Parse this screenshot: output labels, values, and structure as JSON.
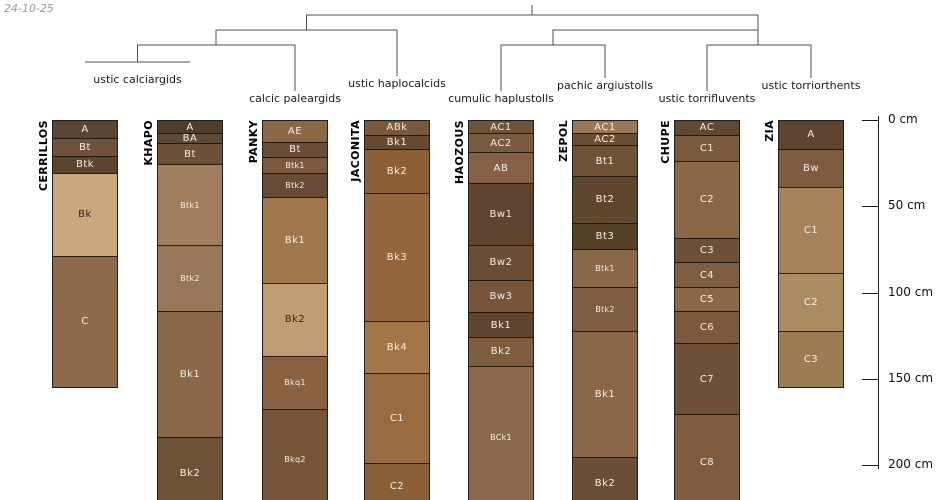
{
  "meta": {
    "date_stamp": "24-10-25"
  },
  "dendrogram": {
    "labels": [
      "ustic calciargids",
      "calcic paleargids",
      "ustic haplocalcids",
      "cumulic haplustolls",
      "pachic argiustolls",
      "ustic torrifluvents",
      "ustic torriorthents"
    ]
  },
  "depth_axis": {
    "unit": "cm",
    "ticks": [
      {
        "cm": 0,
        "label": "0 cm"
      },
      {
        "cm": 50,
        "label": "50 cm"
      },
      {
        "cm": 100,
        "label": "100 cm"
      },
      {
        "cm": 150,
        "label": "150 cm"
      },
      {
        "cm": 200,
        "label": "200 cm"
      }
    ]
  },
  "profiles": [
    {
      "name": "CERRILLOS",
      "group": "ustic calciargids",
      "horizons": [
        {
          "label": "A",
          "top_cm": 0,
          "bottom_cm": 10,
          "color": "#5a4733"
        },
        {
          "label": "Bt",
          "top_cm": 10,
          "bottom_cm": 20,
          "color": "#6e523b"
        },
        {
          "label": "Btk",
          "top_cm": 20,
          "bottom_cm": 30,
          "color": "#59452f"
        },
        {
          "label": "Bk",
          "top_cm": 30,
          "bottom_cm": 78,
          "color": "#c9a67c"
        },
        {
          "label": "C",
          "top_cm": 78,
          "bottom_cm": 154,
          "color": "#8d6a4b"
        }
      ]
    },
    {
      "name": "KHAPO",
      "group": "ustic calciargids",
      "horizons": [
        {
          "label": "A",
          "top_cm": 0,
          "bottom_cm": 7,
          "color": "#4e3d2b"
        },
        {
          "label": "BA",
          "top_cm": 7,
          "bottom_cm": 13,
          "color": "#5d4936"
        },
        {
          "label": "Bt",
          "top_cm": 13,
          "bottom_cm": 25,
          "color": "#6d5038"
        },
        {
          "label": "Btk1",
          "top_cm": 25,
          "bottom_cm": 72,
          "color": "#a07e5e"
        },
        {
          "label": "Btk2",
          "top_cm": 72,
          "bottom_cm": 110,
          "color": "#97775a"
        },
        {
          "label": "Bk1",
          "top_cm": 110,
          "bottom_cm": 183,
          "color": "#8a6749"
        },
        {
          "label": "Bk2",
          "top_cm": 183,
          "bottom_cm": 225,
          "color": "#6e5237"
        }
      ]
    },
    {
      "name": "PANKY",
      "group": "calcic paleargids",
      "horizons": [
        {
          "label": "AE",
          "top_cm": 0,
          "bottom_cm": 12,
          "color": "#8c6746"
        },
        {
          "label": "Bt",
          "top_cm": 12,
          "bottom_cm": 21,
          "color": "#6b4d36"
        },
        {
          "label": "Btk1",
          "top_cm": 21,
          "bottom_cm": 30,
          "color": "#7c5a40"
        },
        {
          "label": "Btk2",
          "top_cm": 30,
          "bottom_cm": 44,
          "color": "#684b36"
        },
        {
          "label": "Bk1",
          "top_cm": 44,
          "bottom_cm": 94,
          "color": "#a0774c"
        },
        {
          "label": "Bk2",
          "top_cm": 94,
          "bottom_cm": 136,
          "color": "#c29d73"
        },
        {
          "label": "Bkq1",
          "top_cm": 136,
          "bottom_cm": 167,
          "color": "#8a6242"
        },
        {
          "label": "Bkq2",
          "top_cm": 167,
          "bottom_cm": 225,
          "color": "#755639"
        }
      ]
    },
    {
      "name": "JACONITA",
      "group": "ustic haplocalcids",
      "horizons": [
        {
          "label": "ABk",
          "top_cm": 0,
          "bottom_cm": 8,
          "color": "#7a583c"
        },
        {
          "label": "Bk1",
          "top_cm": 8,
          "bottom_cm": 16,
          "color": "#674932"
        },
        {
          "label": "Bk2",
          "top_cm": 16,
          "bottom_cm": 42,
          "color": "#8d5f35"
        },
        {
          "label": "Bk3",
          "top_cm": 42,
          "bottom_cm": 116,
          "color": "#95663b"
        },
        {
          "label": "Bk4",
          "top_cm": 116,
          "bottom_cm": 146,
          "color": "#a3764a"
        },
        {
          "label": "C1",
          "top_cm": 146,
          "bottom_cm": 198,
          "color": "#996b40"
        },
        {
          "label": "C2",
          "top_cm": 198,
          "bottom_cm": 225,
          "color": "#885f36"
        }
      ]
    },
    {
      "name": "HAOZOUS",
      "group": "cumulic haplustolls",
      "horizons": [
        {
          "label": "AC1",
          "top_cm": 0,
          "bottom_cm": 7,
          "color": "#6d5339"
        },
        {
          "label": "AC2",
          "top_cm": 7,
          "bottom_cm": 18,
          "color": "#7b5b3f"
        },
        {
          "label": "AB",
          "top_cm": 18,
          "bottom_cm": 36,
          "color": "#866147"
        },
        {
          "label": "Bw1",
          "top_cm": 36,
          "bottom_cm": 72,
          "color": "#5e442e"
        },
        {
          "label": "Bw2",
          "top_cm": 72,
          "bottom_cm": 92,
          "color": "#6a4d34"
        },
        {
          "label": "Bw3",
          "top_cm": 92,
          "bottom_cm": 111,
          "color": "#76553a"
        },
        {
          "label": "Bk1",
          "top_cm": 111,
          "bottom_cm": 125,
          "color": "#5d452f"
        },
        {
          "label": "Bk2",
          "top_cm": 125,
          "bottom_cm": 142,
          "color": "#7d5c40"
        },
        {
          "label": "BCk1",
          "top_cm": 142,
          "bottom_cm": 225,
          "color": "#8a694c"
        }
      ]
    },
    {
      "name": "ZEPOL",
      "group": "pachic argiustolls",
      "horizons": [
        {
          "label": "AC1",
          "top_cm": 0,
          "bottom_cm": 7,
          "color": "#997757"
        },
        {
          "label": "AC2",
          "top_cm": 7,
          "bottom_cm": 14,
          "color": "#6a4f37"
        },
        {
          "label": "Bt1",
          "top_cm": 14,
          "bottom_cm": 32,
          "color": "#6f5136"
        },
        {
          "label": "Bt2",
          "top_cm": 32,
          "bottom_cm": 59,
          "color": "#5f472f"
        },
        {
          "label": "Bt3",
          "top_cm": 59,
          "bottom_cm": 74,
          "color": "#534025"
        },
        {
          "label": "Btk1",
          "top_cm": 74,
          "bottom_cm": 96,
          "color": "#8a6849"
        },
        {
          "label": "Btk2",
          "top_cm": 96,
          "bottom_cm": 122,
          "color": "#7e5e43"
        },
        {
          "label": "Bk1",
          "top_cm": 122,
          "bottom_cm": 195,
          "color": "#8a6747"
        },
        {
          "label": "Bk2",
          "top_cm": 195,
          "bottom_cm": 225,
          "color": "#6a4e35"
        }
      ]
    },
    {
      "name": "CHUPE",
      "group": "ustic torrifluvents",
      "horizons": [
        {
          "label": "AC",
          "top_cm": 0,
          "bottom_cm": 8,
          "color": "#5f4932"
        },
        {
          "label": "C1",
          "top_cm": 8,
          "bottom_cm": 23,
          "color": "#7a5a3d"
        },
        {
          "label": "C2",
          "top_cm": 23,
          "bottom_cm": 68,
          "color": "#8a6746"
        },
        {
          "label": "C3",
          "top_cm": 68,
          "bottom_cm": 82,
          "color": "#6e5037"
        },
        {
          "label": "C4",
          "top_cm": 82,
          "bottom_cm": 96,
          "color": "#7e5e42"
        },
        {
          "label": "C5",
          "top_cm": 96,
          "bottom_cm": 110,
          "color": "#8a6747"
        },
        {
          "label": "C6",
          "top_cm": 110,
          "bottom_cm": 129,
          "color": "#7a593e"
        },
        {
          "label": "C7",
          "top_cm": 129,
          "bottom_cm": 170,
          "color": "#6e4f37"
        },
        {
          "label": "C8",
          "top_cm": 170,
          "bottom_cm": 225,
          "color": "#7e5c40"
        }
      ]
    },
    {
      "name": "ZIA",
      "group": "ustic torriorthents",
      "horizons": [
        {
          "label": "A",
          "top_cm": 0,
          "bottom_cm": 16,
          "color": "#5e452f"
        },
        {
          "label": "Bw",
          "top_cm": 16,
          "bottom_cm": 38,
          "color": "#7e5c40"
        },
        {
          "label": "C1",
          "top_cm": 38,
          "bottom_cm": 88,
          "color": "#a7835b"
        },
        {
          "label": "C2",
          "top_cm": 88,
          "bottom_cm": 122,
          "color": "#aa8c62"
        },
        {
          "label": "C3",
          "top_cm": 122,
          "bottom_cm": 154,
          "color": "#9a7b54"
        }
      ]
    }
  ],
  "style": {
    "line_color": "#4d4d4d",
    "outline_color": "#1f1f1f",
    "label_light": "#f5efe6",
    "label_dark": "#33271a",
    "datestamp_color": "#999999"
  }
}
